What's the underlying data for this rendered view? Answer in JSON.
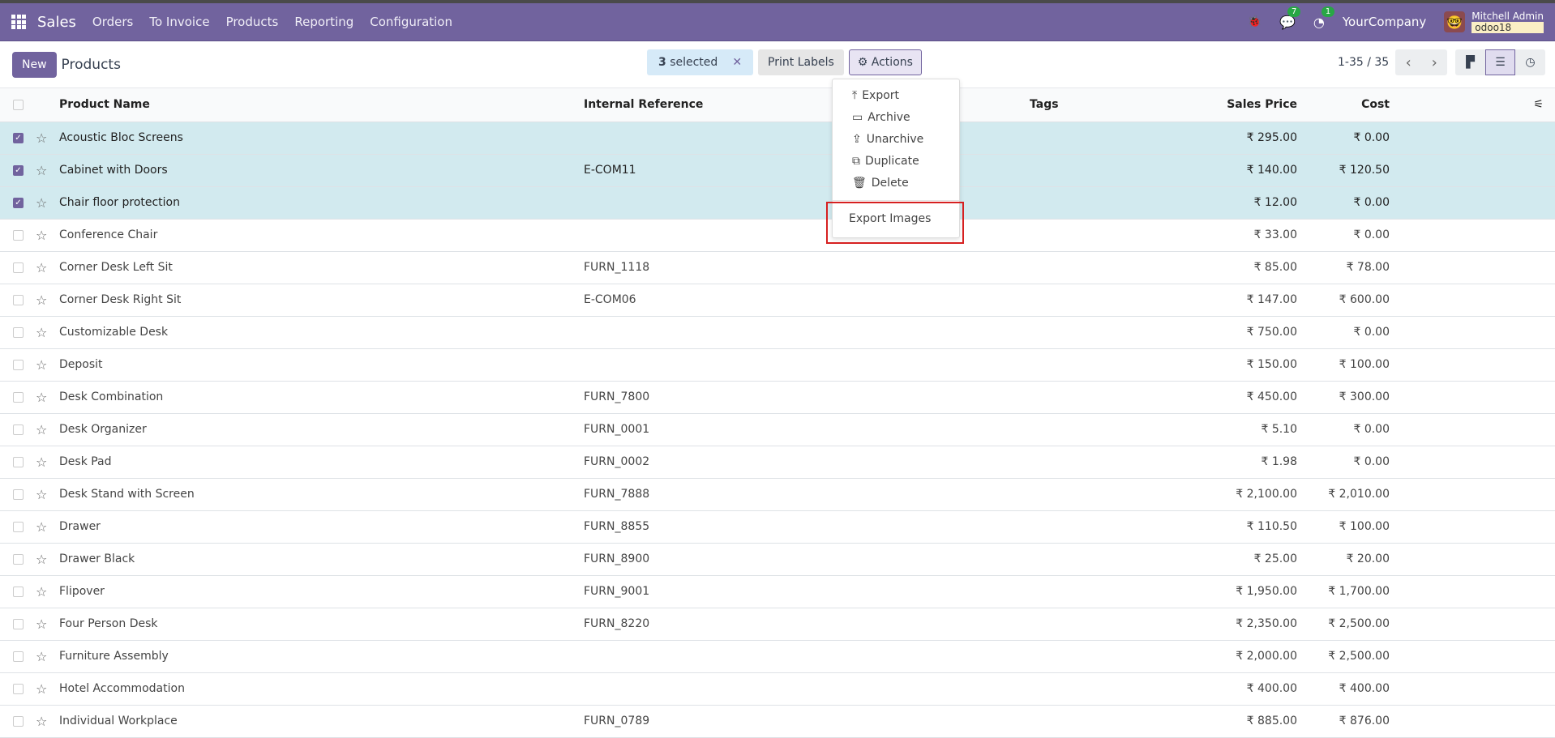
{
  "navbar": {
    "app": "Sales",
    "menu": [
      "Orders",
      "To Invoice",
      "Products",
      "Reporting",
      "Configuration"
    ],
    "messages_count": "7",
    "activities_count": "1",
    "company": "YourCompany",
    "user": "Mitchell Admin",
    "database": "odoo18",
    "color": "#71639e"
  },
  "control": {
    "new_label": "New",
    "title": "Products",
    "selected_count": "3",
    "selected_label": "selected",
    "print_labels": "Print Labels",
    "actions": "Actions",
    "pager": "1-35 / 35"
  },
  "actions_menu": {
    "items": [
      {
        "icon": "upload-icon",
        "label": "Export"
      },
      {
        "icon": "inbox-icon",
        "label": "Archive"
      },
      {
        "icon": "unarchive-icon",
        "label": "Unarchive"
      },
      {
        "icon": "copy-icon",
        "label": "Duplicate"
      },
      {
        "icon": "trash-icon",
        "label": "Delete"
      }
    ],
    "extra": "Export Images",
    "highlighted": "Export Images"
  },
  "table": {
    "headers": [
      "Product Name",
      "Internal Reference",
      "Tags",
      "Sales Price",
      "Cost"
    ],
    "rows": [
      {
        "name": "Acoustic Bloc Screens",
        "ref": "",
        "price": "₹ 295.00",
        "cost": "₹ 0.00",
        "selected": true
      },
      {
        "name": "Cabinet with Doors",
        "ref": "E-COM11",
        "price": "₹ 140.00",
        "cost": "₹ 120.50",
        "selected": true
      },
      {
        "name": "Chair floor protection",
        "ref": "",
        "price": "₹ 12.00",
        "cost": "₹ 0.00",
        "selected": true
      },
      {
        "name": "Conference Chair",
        "ref": "",
        "price": "₹ 33.00",
        "cost": "₹ 0.00"
      },
      {
        "name": "Corner Desk Left Sit",
        "ref": "FURN_1118",
        "price": "₹ 85.00",
        "cost": "₹ 78.00"
      },
      {
        "name": "Corner Desk Right Sit",
        "ref": "E-COM06",
        "price": "₹ 147.00",
        "cost": "₹ 600.00"
      },
      {
        "name": "Customizable Desk",
        "ref": "",
        "price": "₹ 750.00",
        "cost": "₹ 0.00"
      },
      {
        "name": "Deposit",
        "ref": "",
        "price": "₹ 150.00",
        "cost": "₹ 100.00"
      },
      {
        "name": "Desk Combination",
        "ref": "FURN_7800",
        "price": "₹ 450.00",
        "cost": "₹ 300.00"
      },
      {
        "name": "Desk Organizer",
        "ref": "FURN_0001",
        "price": "₹ 5.10",
        "cost": "₹ 0.00"
      },
      {
        "name": "Desk Pad",
        "ref": "FURN_0002",
        "price": "₹ 1.98",
        "cost": "₹ 0.00"
      },
      {
        "name": "Desk Stand with Screen",
        "ref": "FURN_7888",
        "price": "₹ 2,100.00",
        "cost": "₹ 2,010.00"
      },
      {
        "name": "Drawer",
        "ref": "FURN_8855",
        "price": "₹ 110.50",
        "cost": "₹ 100.00"
      },
      {
        "name": "Drawer Black",
        "ref": "FURN_8900",
        "price": "₹ 25.00",
        "cost": "₹ 20.00"
      },
      {
        "name": "Flipover",
        "ref": "FURN_9001",
        "price": "₹ 1,950.00",
        "cost": "₹ 1,700.00"
      },
      {
        "name": "Four Person Desk",
        "ref": "FURN_8220",
        "price": "₹ 2,350.00",
        "cost": "₹ 2,500.00"
      },
      {
        "name": "Furniture Assembly",
        "ref": "",
        "price": "₹ 2,000.00",
        "cost": "₹ 2,500.00"
      },
      {
        "name": "Hotel Accommodation",
        "ref": "",
        "price": "₹ 400.00",
        "cost": "₹ 400.00"
      },
      {
        "name": "Individual Workplace",
        "ref": "FURN_0789",
        "price": "₹ 885.00",
        "cost": "₹ 876.00"
      }
    ]
  }
}
